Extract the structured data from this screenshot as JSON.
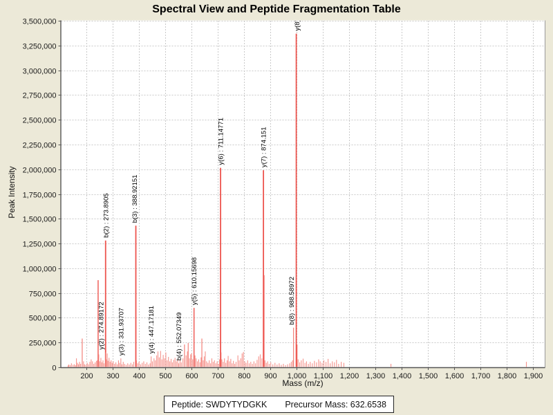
{
  "footer": {
    "peptide_label": "Peptide:",
    "peptide_value": "SWDYTYDGKK",
    "precursor_label": "Precursor Mass:",
    "precursor_value": "632.6538"
  },
  "colors": {
    "background": "#ECE9D8",
    "plot_background": "#FFFFFF",
    "grid": "#C9C9C9",
    "axis": "#555555",
    "frame": "#999999",
    "tick_text": "#1a1a1a",
    "peak_small": "#f5938c",
    "peak_mid": "#f1746c",
    "peak_large": "#ed544e",
    "annotation_text": "#000000"
  },
  "chart_data": {
    "type": "bar",
    "title": "Spectral View and Peptide Fragmentation Table",
    "xlabel": "Mass (m/z)",
    "ylabel": "Peak Intensity",
    "xlim": [
      105,
      1945
    ],
    "ylim": [
      0,
      3500000
    ],
    "xticks": [
      200,
      300,
      400,
      500,
      600,
      700,
      800,
      900,
      1000,
      1100,
      1200,
      1300,
      1400,
      1500,
      1600,
      1700,
      1800,
      1900
    ],
    "ytick_step": 250000,
    "grid": true,
    "legend": false,
    "annotated_peaks": [
      {
        "label": "b(2) : 273.8905",
        "mz": 273.8905,
        "intensity": 1280000,
        "dx": 0
      },
      {
        "label": "y(2) : 274.89172",
        "mz": 274.89172,
        "intensity": 150000,
        "dx": -7
      },
      {
        "label": "y(3) : 331.93707",
        "mz": 331.93707,
        "intensity": 90000,
        "dx": 0
      },
      {
        "label": "b(3) : 388.92151",
        "mz": 388.92151,
        "intensity": 1430000,
        "dx": -2
      },
      {
        "label": "y(4) : 447.17181",
        "mz": 447.17181,
        "intensity": 110000,
        "dx": 0
      },
      {
        "label": "b(4) : 552.07349",
        "mz": 552.07349,
        "intensity": 40000,
        "dx": 0
      },
      {
        "label": "y(5) : 610.15698",
        "mz": 610.15698,
        "intensity": 600000,
        "dx": 0
      },
      {
        "label": "y(6) : 711.14771",
        "mz": 711.14771,
        "intensity": 2015000,
        "dx": 0
      },
      {
        "label": "y(7) : 874.151",
        "mz": 874.151,
        "intensity": 1990000,
        "dx": 0
      },
      {
        "label": "b(8) : 988.58972",
        "mz": 988.58972,
        "intensity": 400000,
        "dx": -3
      },
      {
        "label": "y(8) :",
        "mz": 999.0,
        "intensity": 3370000,
        "dx": 1
      }
    ],
    "noise_peaks": [
      [
        131,
        18000
      ],
      [
        134,
        28000
      ],
      [
        139,
        22000
      ],
      [
        144,
        40000
      ],
      [
        150,
        25000
      ],
      [
        155,
        30000
      ],
      [
        160,
        20000
      ],
      [
        163,
        90000
      ],
      [
        167,
        45000
      ],
      [
        171,
        30000
      ],
      [
        175,
        55000
      ],
      [
        179,
        35000
      ],
      [
        185,
        290000
      ],
      [
        190,
        60000
      ],
      [
        194,
        30000
      ],
      [
        199,
        25000
      ],
      [
        204,
        45000
      ],
      [
        209,
        30000
      ],
      [
        214,
        55000
      ],
      [
        219,
        80000
      ],
      [
        224,
        60000
      ],
      [
        229,
        35000
      ],
      [
        234,
        50000
      ],
      [
        239,
        65000
      ],
      [
        243,
        70000
      ],
      [
        245.5,
        880000
      ],
      [
        248,
        130000
      ],
      [
        252,
        60000
      ],
      [
        256,
        95000
      ],
      [
        260,
        50000
      ],
      [
        264,
        70000
      ],
      [
        268,
        40000
      ],
      [
        277,
        80000
      ],
      [
        280,
        140000
      ],
      [
        283,
        65000
      ],
      [
        287,
        95000
      ],
      [
        291,
        55000
      ],
      [
        295,
        70000
      ],
      [
        299,
        45000
      ],
      [
        303,
        60000
      ],
      [
        308,
        35000
      ],
      [
        313,
        50000
      ],
      [
        318,
        30000
      ],
      [
        323,
        70000
      ],
      [
        327,
        45000
      ],
      [
        336,
        30000
      ],
      [
        341,
        55000
      ],
      [
        346,
        35000
      ],
      [
        352,
        25000
      ],
      [
        358,
        40000
      ],
      [
        364,
        28000
      ],
      [
        370,
        45000
      ],
      [
        376,
        30000
      ],
      [
        381,
        55000
      ],
      [
        391,
        70000
      ],
      [
        396,
        40000
      ],
      [
        401,
        55000
      ],
      [
        407,
        30000
      ],
      [
        413,
        45000
      ],
      [
        419,
        60000
      ],
      [
        425,
        35000
      ],
      [
        431,
        50000
      ],
      [
        437,
        28000
      ],
      [
        443,
        40000
      ],
      [
        452,
        60000
      ],
      [
        458,
        90000
      ],
      [
        463,
        70000
      ],
      [
        468,
        120000
      ],
      [
        473,
        160000
      ],
      [
        478,
        100000
      ],
      [
        483,
        165000
      ],
      [
        488,
        80000
      ],
      [
        493,
        125000
      ],
      [
        498,
        90000
      ],
      [
        503,
        150000
      ],
      [
        508,
        70000
      ],
      [
        513,
        105000
      ],
      [
        518,
        60000
      ],
      [
        523,
        85000
      ],
      [
        528,
        50000
      ],
      [
        533,
        75000
      ],
      [
        538,
        95000
      ],
      [
        543,
        60000
      ],
      [
        548,
        80000
      ],
      [
        557,
        70000
      ],
      [
        562,
        50000
      ],
      [
        568,
        90000
      ],
      [
        574,
        230000
      ],
      [
        580,
        120000
      ],
      [
        585,
        160000
      ],
      [
        588,
        245000
      ],
      [
        593,
        90000
      ],
      [
        597,
        130000
      ],
      [
        601,
        140000
      ],
      [
        605,
        80000
      ],
      [
        614,
        120000
      ],
      [
        618,
        90000
      ],
      [
        623,
        60000
      ],
      [
        628,
        80000
      ],
      [
        633,
        50000
      ],
      [
        637,
        100000
      ],
      [
        640,
        290000
      ],
      [
        645,
        70000
      ],
      [
        649,
        110000
      ],
      [
        653,
        160000
      ],
      [
        658,
        60000
      ],
      [
        663,
        45000
      ],
      [
        668,
        70000
      ],
      [
        673,
        40000
      ],
      [
        678,
        90000
      ],
      [
        683,
        55000
      ],
      [
        688,
        70000
      ],
      [
        693,
        40000
      ],
      [
        698,
        60000
      ],
      [
        703,
        35000
      ],
      [
        707,
        80000
      ],
      [
        713,
        150000
      ],
      [
        716,
        80000
      ],
      [
        721,
        55000
      ],
      [
        726,
        90000
      ],
      [
        731,
        45000
      ],
      [
        736,
        70000
      ],
      [
        740,
        115000
      ],
      [
        745,
        60000
      ],
      [
        750,
        85000
      ],
      [
        755,
        40000
      ],
      [
        760,
        65000
      ],
      [
        765,
        35000
      ],
      [
        770,
        55000
      ],
      [
        777,
        120000
      ],
      [
        782,
        70000
      ],
      [
        788,
        90000
      ],
      [
        793,
        140000
      ],
      [
        798,
        155000
      ],
      [
        803,
        60000
      ],
      [
        808,
        45000
      ],
      [
        814,
        70000
      ],
      [
        820,
        40000
      ],
      [
        826,
        55000
      ],
      [
        832,
        35000
      ],
      [
        838,
        60000
      ],
      [
        844,
        40000
      ],
      [
        850,
        75000
      ],
      [
        856,
        110000
      ],
      [
        862,
        130000
      ],
      [
        868,
        90000
      ],
      [
        876,
        930000
      ],
      [
        880,
        70000
      ],
      [
        885,
        45000
      ],
      [
        890,
        60000
      ],
      [
        896,
        35000
      ],
      [
        902,
        50000
      ],
      [
        910,
        30000
      ],
      [
        918,
        45000
      ],
      [
        926,
        28000
      ],
      [
        934,
        40000
      ],
      [
        942,
        25000
      ],
      [
        950,
        35000
      ],
      [
        958,
        22000
      ],
      [
        966,
        30000
      ],
      [
        974,
        40000
      ],
      [
        980,
        55000
      ],
      [
        985,
        70000
      ],
      [
        1002,
        230000
      ],
      [
        1006,
        80000
      ],
      [
        1012,
        50000
      ],
      [
        1018,
        70000
      ],
      [
        1025,
        87000
      ],
      [
        1032,
        45000
      ],
      [
        1038,
        60000
      ],
      [
        1045,
        35000
      ],
      [
        1052,
        55000
      ],
      [
        1060,
        40000
      ],
      [
        1068,
        65000
      ],
      [
        1076,
        50000
      ],
      [
        1084,
        80000
      ],
      [
        1090,
        60000
      ],
      [
        1097,
        45000
      ],
      [
        1104,
        70000
      ],
      [
        1112,
        55000
      ],
      [
        1120,
        85000
      ],
      [
        1128,
        40000
      ],
      [
        1136,
        60000
      ],
      [
        1144,
        50000
      ],
      [
        1152,
        75000
      ],
      [
        1160,
        35000
      ],
      [
        1170,
        55000
      ],
      [
        1180,
        45000
      ],
      [
        1359,
        35000
      ],
      [
        1874,
        55000
      ]
    ]
  }
}
